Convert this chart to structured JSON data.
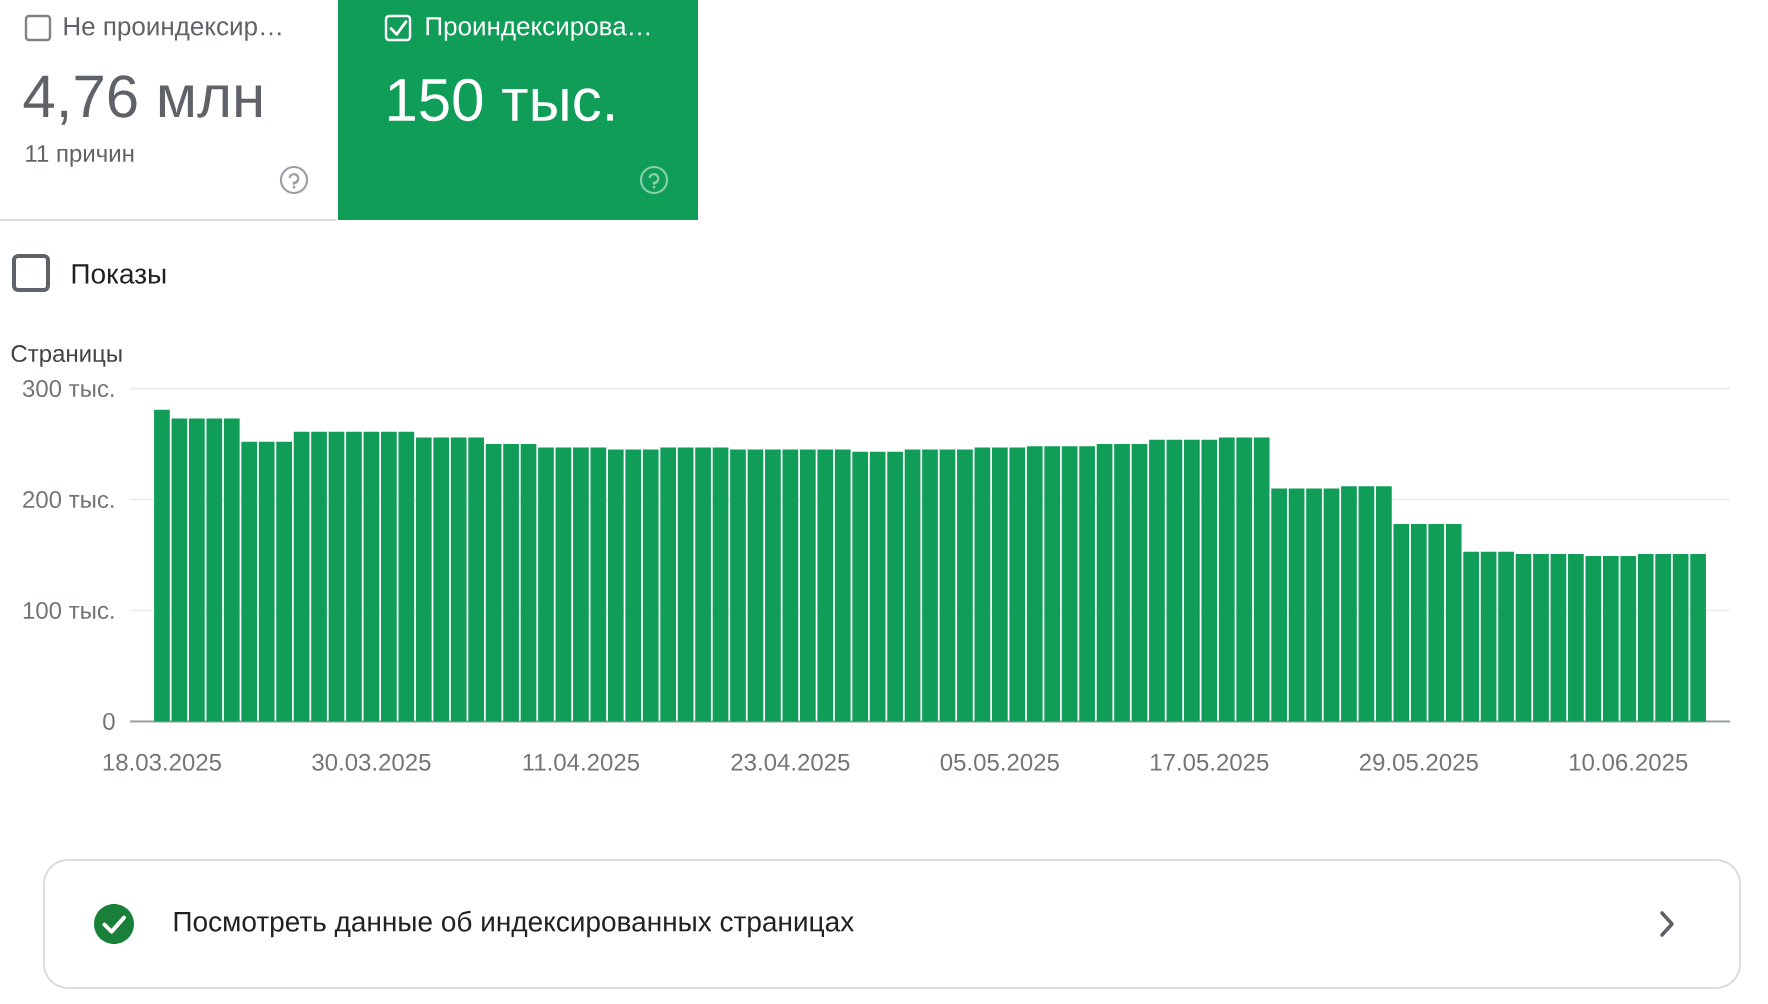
{
  "chart_data": {
    "type": "bar",
    "ylabel": "Страницы",
    "categories": [
      "18.03.2025",
      null,
      null,
      null,
      null,
      null,
      null,
      null,
      null,
      null,
      null,
      null,
      "30.03.2025",
      null,
      null,
      null,
      null,
      null,
      null,
      null,
      null,
      null,
      null,
      null,
      "11.04.2025",
      null,
      null,
      null,
      null,
      null,
      null,
      null,
      null,
      null,
      null,
      null,
      "23.04.2025",
      null,
      null,
      null,
      null,
      null,
      null,
      null,
      null,
      null,
      null,
      null,
      "05.05.2025",
      null,
      null,
      null,
      null,
      null,
      null,
      null,
      null,
      null,
      null,
      null,
      "17.05.2025",
      null,
      null,
      null,
      null,
      null,
      null,
      null,
      null,
      null,
      null,
      null,
      "29.05.2025",
      null,
      null,
      null,
      null,
      null,
      null,
      null,
      null,
      null,
      null,
      null,
      "10.06.2025",
      null,
      null,
      null,
      null
    ],
    "values": [
      281,
      273,
      273,
      273,
      273,
      252,
      252,
      252,
      261,
      261,
      261,
      261,
      261,
      261,
      261,
      256,
      256,
      256,
      256,
      250,
      250,
      250,
      247,
      247,
      247,
      247,
      245,
      245,
      245,
      247,
      247,
      247,
      247,
      245,
      245,
      245,
      245,
      245,
      245,
      245,
      243,
      243,
      243,
      245,
      245,
      245,
      245,
      247,
      247,
      247,
      248,
      248,
      248,
      248,
      250,
      250,
      250,
      254,
      254,
      254,
      254,
      256,
      256,
      256,
      210,
      210,
      210,
      210,
      212,
      212,
      212,
      178,
      178,
      178,
      178,
      153,
      153,
      153,
      151,
      151,
      151,
      151,
      149,
      149,
      149,
      151,
      151,
      151,
      151
    ],
    "color": "#0f9d58",
    "ylim": [
      0,
      300
    ],
    "yticks": [
      0,
      {
        "value": 100,
        "label": "100 тыс."
      },
      {
        "value": 200,
        "label": "200 тыс."
      },
      {
        "value": 300,
        "label": "300 тыс."
      }
    ],
    "grid": "y",
    "annotations": [
      "Не проиндексир…",
      "4,76 млн",
      "11 причин",
      "Проиндексирова…",
      "150 тыс.",
      "Показы",
      "Посмотреть данные об индексированных страницах"
    ]
  }
}
